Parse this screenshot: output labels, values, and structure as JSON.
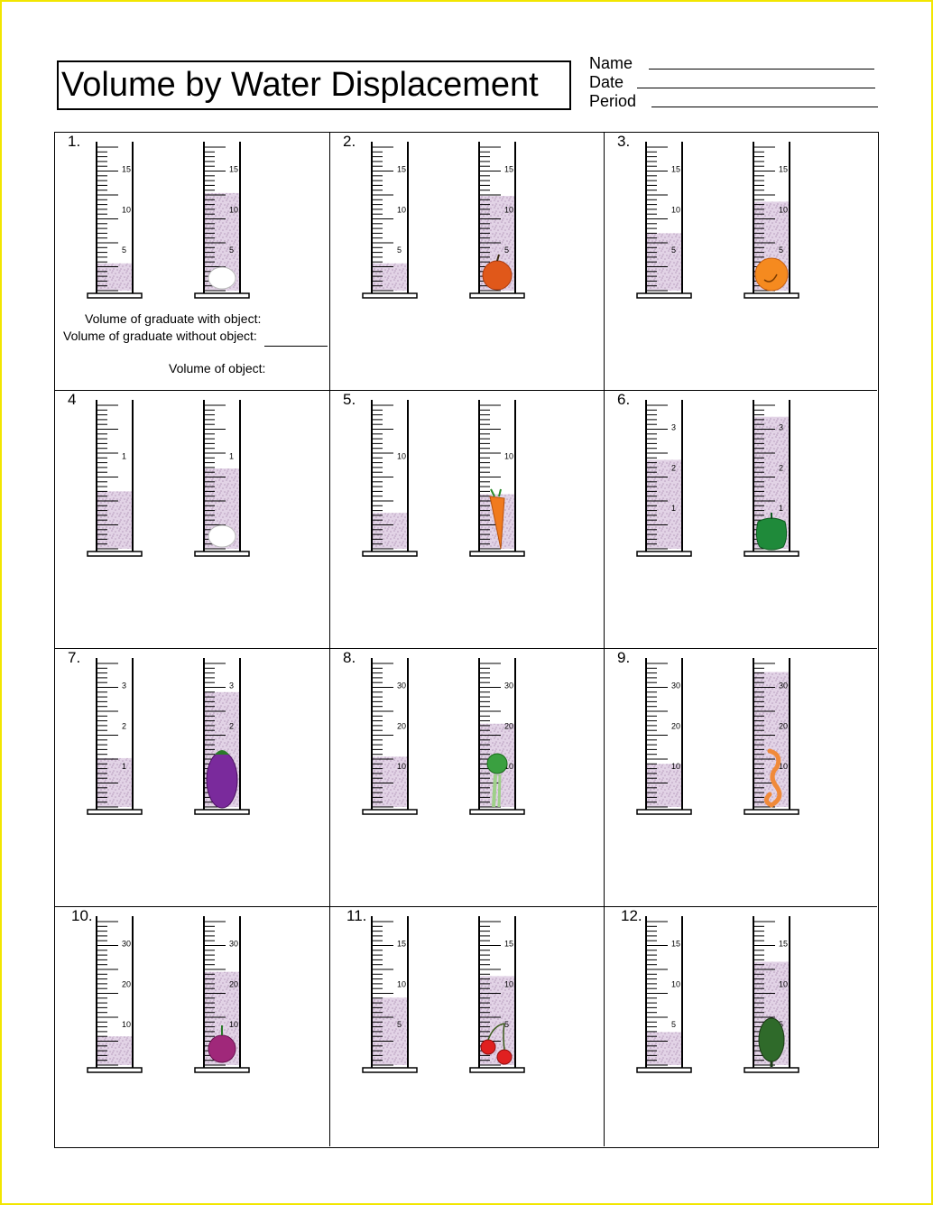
{
  "title": "Volume by Water Displacement",
  "info": [
    {
      "label": "Name",
      "line": "____________________"
    },
    {
      "label": "Date",
      "line": "_____________________"
    },
    {
      "label": "Period",
      "line": "____________________"
    }
  ],
  "labels": {
    "with_object": "Volume of graduate with object:",
    "without_object": "Volume of graduate without object:",
    "object_volume": "Volume of object:"
  },
  "problems": [
    {
      "number": "1.",
      "ticks": [
        "5",
        "10",
        "15"
      ],
      "level_without": 0.19,
      "level_with": 0.68,
      "object": "egg",
      "object_color": "#ffffff"
    },
    {
      "number": "2.",
      "ticks": [
        "5",
        "10",
        "15"
      ],
      "level_without": 0.19,
      "level_with": 0.66,
      "object": "apple",
      "object_color": "#e0581a"
    },
    {
      "number": "3.",
      "ticks": [
        "5",
        "10",
        "15"
      ],
      "level_without": 0.4,
      "level_with": 0.62,
      "object": "orange",
      "object_color": "#f58a1f"
    },
    {
      "number": "4",
      "ticks": [
        "1"
      ],
      "level_without": 0.4,
      "level_with": 0.56,
      "object": "egg",
      "object_color": "#ffffff"
    },
    {
      "number": "5.",
      "ticks": [
        "10"
      ],
      "level_without": 0.25,
      "level_with": 0.38,
      "object": "carrot",
      "object_color": "#f07a1e"
    },
    {
      "number": "6.",
      "ticks": [
        "1",
        "2",
        "3"
      ],
      "level_without": 0.62,
      "level_with": 0.92,
      "object": "pepper",
      "object_color": "#1f8a3a"
    },
    {
      "number": "7.",
      "ticks": [
        "1",
        "2",
        "3"
      ],
      "level_without": 0.34,
      "level_with": 0.8,
      "object": "eggplant",
      "object_color": "#7a2a9c"
    },
    {
      "number": "8.",
      "ticks": [
        "10",
        "20",
        "30"
      ],
      "level_without": 0.35,
      "level_with": 0.58,
      "object": "celery",
      "object_color": "#3aa040"
    },
    {
      "number": "9.",
      "ticks": [
        "10",
        "20",
        "30"
      ],
      "level_without": 0.3,
      "level_with": 0.94,
      "object": "seahorse",
      "object_color": "#f08a3a"
    },
    {
      "number": "10.",
      "ticks": [
        "10",
        "20",
        "30"
      ],
      "level_without": 0.2,
      "level_with": 0.65,
      "object": "beet",
      "object_color": "#a0287a"
    },
    {
      "number": "11.",
      "ticks": [
        "5",
        "10",
        "15"
      ],
      "level_without": 0.47,
      "level_with": 0.62,
      "object": "cherries",
      "object_color": "#e02020"
    },
    {
      "number": "12.",
      "ticks": [
        "5",
        "10",
        "15"
      ],
      "level_without": 0.23,
      "level_with": 0.72,
      "object": "artichoke",
      "object_color": "#2f6a2a"
    }
  ]
}
